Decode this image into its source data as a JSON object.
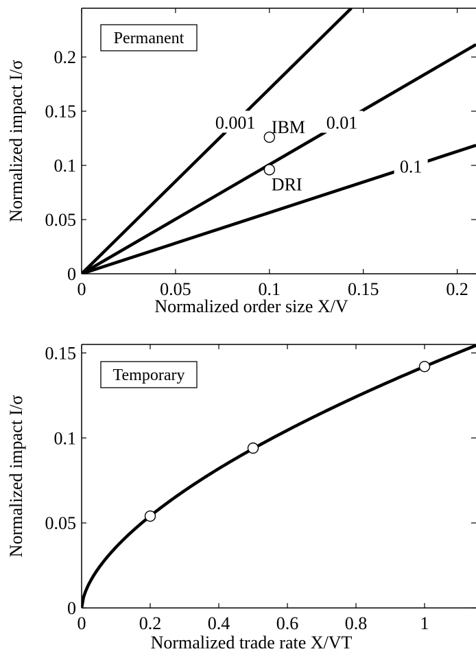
{
  "chart_data": [
    {
      "type": "line",
      "box_label": "Permanent",
      "xlabel": "Normalized order size X/V",
      "ylabel": "Normalized impact I/σ",
      "xlim": [
        0,
        0.21
      ],
      "ylim": [
        0,
        0.245
      ],
      "xticks": [
        0,
        0.05,
        0.1,
        0.15,
        0.2
      ],
      "xtick_labels": [
        "0",
        "0.05",
        "0.1",
        "0.15",
        "0.2"
      ],
      "yticks": [
        0,
        0.05,
        0.1,
        0.15,
        0.2
      ],
      "ytick_labels": [
        "0",
        "0.05",
        "0.1",
        "0.15",
        "0.2"
      ],
      "grid": false,
      "series": [
        {
          "name": "0.001",
          "x": [
            0,
            0.1436
          ],
          "y": [
            0,
            0.245
          ]
        },
        {
          "name": "0.01",
          "x": [
            0,
            0.21
          ],
          "y": [
            0,
            0.2115
          ]
        },
        {
          "name": "0.1",
          "x": [
            0,
            0.21
          ],
          "y": [
            0,
            0.1185
          ]
        }
      ],
      "points": [
        {
          "label": "IBM",
          "x": 0.1,
          "y": 0.126
        },
        {
          "label": "DRI",
          "x": 0.1,
          "y": 0.096
        }
      ]
    },
    {
      "type": "line",
      "box_label": "Temporary",
      "xlabel": "Normalized trade rate X/VT",
      "ylabel": "Normalized impact I/σ",
      "xlim": [
        0,
        1.15
      ],
      "ylim": [
        0,
        0.155
      ],
      "xticks": [
        0,
        0.2,
        0.4,
        0.6,
        0.8,
        1
      ],
      "xtick_labels": [
        "0",
        "0.2",
        "0.4",
        "0.6",
        "0.8",
        "1"
      ],
      "yticks": [
        0,
        0.05,
        0.1,
        0.15
      ],
      "ytick_labels": [
        "0",
        "0.05",
        "0.1",
        "0.15"
      ],
      "grid": false,
      "series": [
        {
          "x": [
            0,
            0.005,
            0.01,
            0.02,
            0.04,
            0.07,
            0.1,
            0.15,
            0.2,
            0.3,
            0.4,
            0.5,
            0.6,
            0.7,
            0.8,
            0.9,
            1.0,
            1.1,
            1.15
          ],
          "y": [
            0,
            0.0105,
            0.0149,
            0.0211,
            0.0298,
            0.0388,
            0.0463,
            0.0556,
            0.054,
            0.0686,
            0.0811,
            0.0937,
            0.1027,
            0.1111,
            0.1187,
            0.1259,
            0.142,
            0.1484,
            0.1546
          ]
        }
      ],
      "points": [
        {
          "x": 0.2,
          "y": 0.054
        },
        {
          "x": 0.5,
          "y": 0.094
        },
        {
          "x": 1.0,
          "y": 0.142
        }
      ]
    }
  ]
}
